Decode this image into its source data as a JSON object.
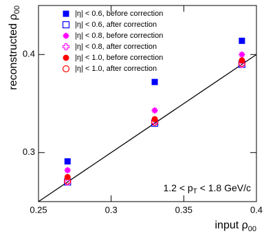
{
  "chart_data": {
    "type": "scatter",
    "x_label": {
      "text": "input ρ",
      "sub": "00"
    },
    "y_label": {
      "text": "reconstructed ρ",
      "sub": "00"
    },
    "annotation": {
      "before": "1.2 < p",
      "sub": "T",
      "after": " < 1.8 GeV/c"
    },
    "x": [
      0.27,
      0.33,
      0.39
    ],
    "series": [
      {
        "name": "|η| < 0.6, before correction",
        "color": "#0000ff",
        "marker": "square",
        "values": [
          0.291,
          0.372,
          0.414
        ]
      },
      {
        "name": "|η| < 0.6, after correction",
        "color": "#0000ff",
        "marker": "open-square",
        "values": [
          0.27,
          0.33,
          0.39
        ]
      },
      {
        "name": "|η| < 0.8, before correction",
        "color": "#ff00ff",
        "marker": "star",
        "values": [
          0.282,
          0.343,
          0.4
        ]
      },
      {
        "name": "|η| < 0.8, after correction",
        "color": "#ff00ff",
        "marker": "open-cross",
        "values": [
          0.27,
          0.331,
          0.39
        ]
      },
      {
        "name": "|η| < 1.0, before correction",
        "color": "#ff0000",
        "marker": "circle",
        "values": [
          0.275,
          0.334,
          0.394
        ]
      },
      {
        "name": "|η| < 1.0, after correction",
        "color": "#ff0000",
        "marker": "open-circle",
        "values": [
          0.271,
          0.331,
          0.391
        ]
      }
    ],
    "xlim": [
      0.25,
      0.4
    ],
    "xticks": [
      0.25,
      0.3,
      0.35,
      0.4
    ],
    "ylim": [
      0.25,
      0.45
    ],
    "yticks": [
      0.3,
      0.4
    ],
    "legend": "top-left",
    "reference_line": "y = x"
  }
}
